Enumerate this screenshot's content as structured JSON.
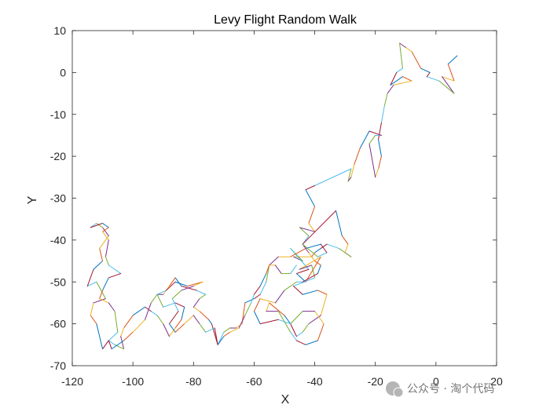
{
  "chart_data": {
    "type": "line",
    "title": "Levy Flight Random Walk",
    "xlabel": "X",
    "ylabel": "Y",
    "xlim": [
      -120,
      20
    ],
    "ylim": [
      -70,
      10
    ],
    "xticks": [
      -120,
      -100,
      -80,
      -60,
      -40,
      -20,
      0,
      20
    ],
    "yticks": [
      10,
      0,
      -10,
      -20,
      -30,
      -40,
      -50,
      -60,
      -70
    ],
    "grid": false,
    "legend": "none",
    "colors": [
      "#0072BD",
      "#D95319",
      "#EDB120",
      "#7E2F8E",
      "#77AC30",
      "#4DBEEE",
      "#A2142F"
    ],
    "path": [
      [
        7,
        4
      ],
      [
        4,
        2
      ],
      [
        6,
        -2
      ],
      [
        2,
        -1
      ],
      [
        6,
        -5
      ],
      [
        1,
        -2
      ],
      [
        -3,
        -1
      ],
      [
        -2,
        0
      ],
      [
        -5,
        1
      ],
      [
        -8,
        5
      ],
      [
        -10,
        6
      ],
      [
        -12,
        7
      ],
      [
        -11,
        1
      ],
      [
        -13,
        0
      ],
      [
        -15,
        -3
      ],
      [
        -11,
        -1
      ],
      [
        -8,
        -2
      ],
      [
        -14,
        -3
      ],
      [
        -16,
        -5
      ],
      [
        -17,
        -8
      ],
      [
        -18,
        -12
      ],
      [
        -19,
        -16
      ],
      [
        -18,
        -20
      ],
      [
        -19,
        -23
      ],
      [
        -20,
        -25
      ],
      [
        -22,
        -17
      ],
      [
        -20,
        -15
      ],
      [
        -18,
        -15
      ],
      [
        -22,
        -14
      ],
      [
        -25,
        -18
      ],
      [
        -27,
        -22
      ],
      [
        -28,
        -25
      ],
      [
        -29,
        -26
      ],
      [
        -28,
        -23
      ],
      [
        -40,
        -27
      ],
      [
        -43,
        -28
      ],
      [
        -40,
        -32
      ],
      [
        -42,
        -36
      ],
      [
        -40,
        -38
      ],
      [
        -45,
        -37
      ],
      [
        -42,
        -39
      ],
      [
        -44,
        -41
      ],
      [
        -33,
        -33
      ],
      [
        -31,
        -39
      ],
      [
        -29,
        -41
      ],
      [
        -30,
        -43
      ],
      [
        -28,
        -44
      ],
      [
        -32,
        -42
      ],
      [
        -36,
        -41
      ],
      [
        -38,
        -42
      ],
      [
        -40,
        -43
      ],
      [
        -41,
        -44
      ],
      [
        -47,
        -44
      ],
      [
        -44,
        -45
      ],
      [
        -48,
        -42
      ],
      [
        -42,
        -47
      ],
      [
        -46,
        -48
      ],
      [
        -43,
        -50
      ],
      [
        -38,
        -44
      ],
      [
        -45,
        -47
      ],
      [
        -41,
        -46
      ],
      [
        -40,
        -49
      ],
      [
        -47,
        -51
      ],
      [
        -44,
        -53
      ],
      [
        -39,
        -52
      ],
      [
        -36,
        -53
      ],
      [
        -38,
        -58
      ],
      [
        -42,
        -60
      ],
      [
        -44,
        -62
      ],
      [
        -46,
        -63
      ],
      [
        -48,
        -60
      ],
      [
        -50,
        -58
      ],
      [
        -55,
        -55
      ],
      [
        -56,
        -57
      ],
      [
        -52,
        -57
      ],
      [
        -48,
        -62
      ],
      [
        -46,
        -64
      ],
      [
        -43,
        -65
      ],
      [
        -39,
        -64
      ],
      [
        -37,
        -60
      ],
      [
        -40,
        -57
      ],
      [
        -44,
        -57
      ],
      [
        -48,
        -60
      ],
      [
        -52,
        -59
      ],
      [
        -58,
        -60
      ],
      [
        -60,
        -57
      ],
      [
        -58,
        -54
      ],
      [
        -53,
        -55
      ],
      [
        -50,
        -52
      ],
      [
        -46,
        -50
      ],
      [
        -44,
        -50
      ],
      [
        -39,
        -48
      ],
      [
        -38,
        -46
      ],
      [
        -40,
        -45
      ],
      [
        -42,
        -43
      ],
      [
        -44,
        -41
      ],
      [
        -39,
        -44
      ],
      [
        -36,
        -43
      ],
      [
        -38,
        -41
      ],
      [
        -43,
        -42
      ],
      [
        -48,
        -44
      ],
      [
        -52,
        -44
      ],
      [
        -55,
        -46
      ],
      [
        -56,
        -50
      ],
      [
        -58,
        -53
      ],
      [
        -60,
        -54
      ],
      [
        -63,
        -55
      ],
      [
        -64,
        -60
      ],
      [
        -66,
        -61
      ],
      [
        -68,
        -61
      ],
      [
        -70,
        -62
      ],
      [
        -72,
        -65
      ],
      [
        -74,
        -60
      ],
      [
        -75,
        -59
      ],
      [
        -78,
        -57
      ],
      [
        -80,
        -56
      ],
      [
        -78,
        -54
      ],
      [
        -76,
        -53
      ],
      [
        -79,
        -52
      ],
      [
        -84,
        -51
      ],
      [
        -86,
        -49
      ],
      [
        -88,
        -51
      ],
      [
        -90,
        -53
      ],
      [
        -92,
        -53
      ],
      [
        -90,
        -56
      ],
      [
        -86,
        -55
      ],
      [
        -83,
        -56
      ],
      [
        -84,
        -59
      ],
      [
        -86,
        -61
      ],
      [
        -88,
        -63
      ],
      [
        -90,
        -60
      ],
      [
        -92,
        -58
      ],
      [
        -94,
        -57
      ],
      [
        -96,
        -56
      ],
      [
        -100,
        -58
      ],
      [
        -103,
        -61
      ],
      [
        -104,
        -63
      ],
      [
        -103,
        -66
      ],
      [
        -106,
        -65
      ],
      [
        -108,
        -64
      ],
      [
        -110,
        -66
      ],
      [
        -112,
        -60
      ],
      [
        -114,
        -58
      ],
      [
        -113,
        -55
      ],
      [
        -109,
        -54
      ],
      [
        -112,
        -50
      ],
      [
        -115,
        -51
      ],
      [
        -113,
        -47
      ],
      [
        -110,
        -45
      ],
      [
        -111,
        -42
      ],
      [
        -108,
        -39
      ],
      [
        -110,
        -37
      ],
      [
        -112,
        -36
      ],
      [
        -114,
        -37
      ],
      [
        -110,
        -36
      ],
      [
        -108,
        -37
      ],
      [
        -110,
        -38
      ],
      [
        -108,
        -40
      ],
      [
        -109,
        -44
      ],
      [
        -108,
        -46
      ],
      [
        -104,
        -48
      ],
      [
        -108,
        -49
      ],
      [
        -110,
        -52
      ],
      [
        -111,
        -54
      ],
      [
        -108,
        -55
      ],
      [
        -106,
        -57
      ],
      [
        -105,
        -62
      ],
      [
        -108,
        -64
      ],
      [
        -107,
        -66
      ],
      [
        -103,
        -64
      ],
      [
        -100,
        -62
      ],
      [
        -96,
        -59
      ],
      [
        -94,
        -55
      ],
      [
        -92,
        -53
      ],
      [
        -89,
        -52
      ],
      [
        -86,
        -50
      ],
      [
        -82,
        -51
      ],
      [
        -77,
        -50
      ],
      [
        -80,
        -51
      ],
      [
        -84,
        -52
      ],
      [
        -87,
        -54
      ],
      [
        -85,
        -57
      ],
      [
        -88,
        -60
      ],
      [
        -86,
        -62
      ],
      [
        -83,
        -60
      ],
      [
        -80,
        -58
      ],
      [
        -78,
        -60
      ],
      [
        -76,
        -62
      ],
      [
        -73,
        -61
      ],
      [
        -72,
        -65
      ],
      [
        -70,
        -63
      ],
      [
        -68,
        -62
      ],
      [
        -65,
        -61
      ],
      [
        -63,
        -58
      ],
      [
        -61,
        -55
      ],
      [
        -60,
        -53
      ],
      [
        -58,
        -51
      ],
      [
        -56,
        -48
      ],
      [
        -55,
        -46
      ],
      [
        -53,
        -46
      ],
      [
        -51,
        -48
      ],
      [
        -48,
        -48
      ],
      [
        -46,
        -46
      ]
    ]
  },
  "watermark": {
    "text": "公众号 · 淘个代码"
  }
}
